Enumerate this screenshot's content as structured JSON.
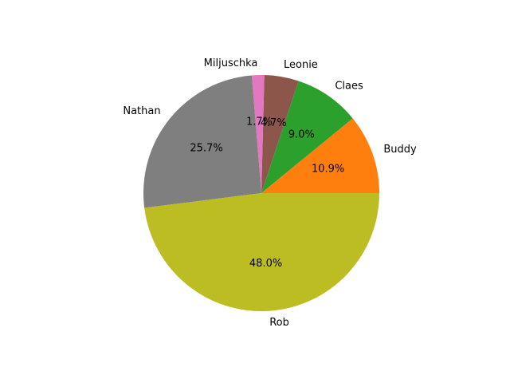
{
  "chart_data": {
    "type": "pie",
    "title": "",
    "legend": "none",
    "slices": [
      {
        "label": "Buddy",
        "value": 10.9,
        "pct_text": "10.9%",
        "color": "#ff7f0e"
      },
      {
        "label": "Claes",
        "value": 9.0,
        "pct_text": "9.0%",
        "color": "#2ca02c"
      },
      {
        "label": "Leonie",
        "value": 4.7,
        "pct_text": "4.7%",
        "color": "#8c564b"
      },
      {
        "label": "Miljuschka",
        "value": 1.7,
        "pct_text": "1.7%",
        "color": "#e377c2"
      },
      {
        "label": "Nathan",
        "value": 25.7,
        "pct_text": "25.7%",
        "color": "#7f7f7f"
      },
      {
        "label": "Rob",
        "value": 48.0,
        "pct_text": "48.0%",
        "color": "#bcbd22"
      }
    ]
  }
}
